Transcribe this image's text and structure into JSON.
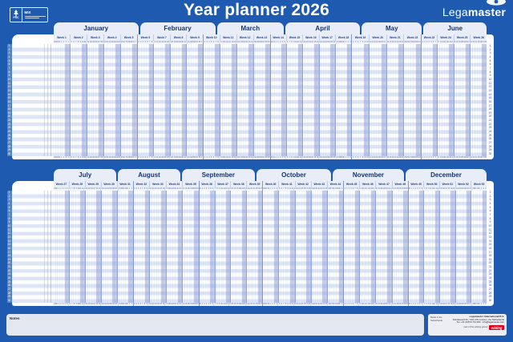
{
  "header": {
    "title": "Year planner 2026",
    "brand": {
      "prefix": "Lega",
      "suffix": "master"
    },
    "fsc": {
      "label": "FSC",
      "mix": "MIX"
    }
  },
  "planner": {
    "row_count": 30,
    "halves": [
      {
        "months": [
          {
            "name": "January",
            "weeks": [
              {
                "label": "Week 1",
                "days": [
                  29,
                  30,
                  31,
                  1,
                  2,
                  3,
                  4
                ]
              },
              {
                "label": "Week 2",
                "days": [
                  5,
                  6,
                  7,
                  8,
                  9,
                  10,
                  11
                ]
              },
              {
                "label": "Week 3",
                "days": [
                  12,
                  13,
                  14,
                  15,
                  16,
                  17,
                  18
                ]
              },
              {
                "label": "Week 4",
                "days": [
                  19,
                  20,
                  21,
                  22,
                  23,
                  24,
                  25
                ]
              },
              {
                "label": "Week 5",
                "days": [
                  26,
                  27,
                  28,
                  29,
                  30,
                  31,
                  1
                ]
              }
            ]
          },
          {
            "name": "February",
            "weeks": [
              {
                "label": "Week 6",
                "days": [
                  2,
                  3,
                  4,
                  5,
                  6,
                  7,
                  8
                ]
              },
              {
                "label": "Week 7",
                "days": [
                  9,
                  10,
                  11,
                  12,
                  13,
                  14,
                  15
                ]
              },
              {
                "label": "Week 8",
                "days": [
                  16,
                  17,
                  18,
                  19,
                  20,
                  21,
                  22
                ]
              },
              {
                "label": "Week 9",
                "days": [
                  23,
                  24,
                  25,
                  26,
                  27,
                  28,
                  1
                ]
              }
            ]
          },
          {
            "name": "March",
            "weeks": [
              {
                "label": "Week 10",
                "days": [
                  2,
                  3,
                  4,
                  5,
                  6,
                  7,
                  8
                ]
              },
              {
                "label": "Week 11",
                "days": [
                  9,
                  10,
                  11,
                  12,
                  13,
                  14,
                  15
                ]
              },
              {
                "label": "Week 12",
                "days": [
                  16,
                  17,
                  18,
                  19,
                  20,
                  21,
                  22
                ]
              },
              {
                "label": "Week 13",
                "days": [
                  23,
                  24,
                  25,
                  26,
                  27,
                  28,
                  29
                ]
              }
            ]
          },
          {
            "name": "April",
            "weeks": [
              {
                "label": "Week 14",
                "days": [
                  30,
                  31,
                  1,
                  2,
                  3,
                  4,
                  5
                ]
              },
              {
                "label": "Week 15",
                "days": [
                  6,
                  7,
                  8,
                  9,
                  10,
                  11,
                  12
                ]
              },
              {
                "label": "Week 16",
                "days": [
                  13,
                  14,
                  15,
                  16,
                  17,
                  18,
                  19
                ]
              },
              {
                "label": "Week 17",
                "days": [
                  20,
                  21,
                  22,
                  23,
                  24,
                  25,
                  26
                ]
              },
              {
                "label": "Week 18",
                "days": [
                  27,
                  28,
                  29,
                  30,
                  1,
                  2,
                  3
                ]
              }
            ]
          },
          {
            "name": "May",
            "weeks": [
              {
                "label": "Week 19",
                "days": [
                  4,
                  5,
                  6,
                  7,
                  8,
                  9,
                  10
                ]
              },
              {
                "label": "Week 20",
                "days": [
                  11,
                  12,
                  13,
                  14,
                  15,
                  16,
                  17
                ]
              },
              {
                "label": "Week 21",
                "days": [
                  18,
                  19,
                  20,
                  21,
                  22,
                  23,
                  24
                ]
              },
              {
                "label": "Week 22",
                "days": [
                  25,
                  26,
                  27,
                  28,
                  29,
                  30,
                  31
                ]
              }
            ]
          },
          {
            "name": "June",
            "weeks": [
              {
                "label": "Week 23",
                "days": [
                  1,
                  2,
                  3,
                  4,
                  5,
                  6,
                  7
                ]
              },
              {
                "label": "Week 24",
                "days": [
                  8,
                  9,
                  10,
                  11,
                  12,
                  13,
                  14
                ]
              },
              {
                "label": "Week 25",
                "days": [
                  15,
                  16,
                  17,
                  18,
                  19,
                  20,
                  21
                ]
              },
              {
                "label": "Week 26",
                "days": [
                  22,
                  23,
                  24,
                  25,
                  26,
                  27,
                  28
                ]
              }
            ]
          }
        ]
      },
      {
        "months": [
          {
            "name": "July",
            "weeks": [
              {
                "label": "Week 27",
                "days": [
                  29,
                  30,
                  1,
                  2,
                  3,
                  4,
                  5
                ]
              },
              {
                "label": "Week 28",
                "days": [
                  6,
                  7,
                  8,
                  9,
                  10,
                  11,
                  12
                ]
              },
              {
                "label": "Week 29",
                "days": [
                  13,
                  14,
                  15,
                  16,
                  17,
                  18,
                  19
                ]
              },
              {
                "label": "Week 30",
                "days": [
                  20,
                  21,
                  22,
                  23,
                  24,
                  25,
                  26
                ]
              },
              {
                "label": "Week 31",
                "days": [
                  27,
                  28,
                  29,
                  30,
                  31,
                  1,
                  2
                ]
              }
            ]
          },
          {
            "name": "August",
            "weeks": [
              {
                "label": "Week 32",
                "days": [
                  3,
                  4,
                  5,
                  6,
                  7,
                  8,
                  9
                ]
              },
              {
                "label": "Week 33",
                "days": [
                  10,
                  11,
                  12,
                  13,
                  14,
                  15,
                  16
                ]
              },
              {
                "label": "Week 34",
                "days": [
                  17,
                  18,
                  19,
                  20,
                  21,
                  22,
                  23
                ]
              },
              {
                "label": "Week 35",
                "days": [
                  24,
                  25,
                  26,
                  27,
                  28,
                  29,
                  30
                ]
              }
            ]
          },
          {
            "name": "September",
            "weeks": [
              {
                "label": "Week 36",
                "days": [
                  31,
                  1,
                  2,
                  3,
                  4,
                  5,
                  6
                ]
              },
              {
                "label": "Week 37",
                "days": [
                  7,
                  8,
                  9,
                  10,
                  11,
                  12,
                  13
                ]
              },
              {
                "label": "Week 38",
                "days": [
                  14,
                  15,
                  16,
                  17,
                  18,
                  19,
                  20
                ]
              },
              {
                "label": "Week 39",
                "days": [
                  21,
                  22,
                  23,
                  24,
                  25,
                  26,
                  27
                ]
              }
            ]
          },
          {
            "name": "October",
            "weeks": [
              {
                "label": "Week 40",
                "days": [
                  28,
                  29,
                  30,
                  1,
                  2,
                  3,
                  4
                ]
              },
              {
                "label": "Week 41",
                "days": [
                  5,
                  6,
                  7,
                  8,
                  9,
                  10,
                  11
                ]
              },
              {
                "label": "Week 42",
                "days": [
                  12,
                  13,
                  14,
                  15,
                  16,
                  17,
                  18
                ]
              },
              {
                "label": "Week 43",
                "days": [
                  19,
                  20,
                  21,
                  22,
                  23,
                  24,
                  25
                ]
              },
              {
                "label": "Week 44",
                "days": [
                  26,
                  27,
                  28,
                  29,
                  30,
                  31,
                  1
                ]
              }
            ]
          },
          {
            "name": "November",
            "weeks": [
              {
                "label": "Week 45",
                "days": [
                  2,
                  3,
                  4,
                  5,
                  6,
                  7,
                  8
                ]
              },
              {
                "label": "Week 46",
                "days": [
                  9,
                  10,
                  11,
                  12,
                  13,
                  14,
                  15
                ]
              },
              {
                "label": "Week 47",
                "days": [
                  16,
                  17,
                  18,
                  19,
                  20,
                  21,
                  22
                ]
              },
              {
                "label": "Week 48",
                "days": [
                  23,
                  24,
                  25,
                  26,
                  27,
                  28,
                  29
                ]
              }
            ]
          },
          {
            "name": "December",
            "weeks": [
              {
                "label": "Week 49",
                "days": [
                  30,
                  1,
                  2,
                  3,
                  4,
                  5,
                  6
                ]
              },
              {
                "label": "Week 50",
                "days": [
                  7,
                  8,
                  9,
                  10,
                  11,
                  12,
                  13
                ]
              },
              {
                "label": "Week 51",
                "days": [
                  14,
                  15,
                  16,
                  17,
                  18,
                  19,
                  20
                ]
              },
              {
                "label": "Week 52",
                "days": [
                  21,
                  22,
                  23,
                  24,
                  25,
                  26,
                  27
                ]
              },
              {
                "label": "Week 53",
                "days": [
                  28,
                  29,
                  30,
                  31,
                  1,
                  2,
                  3
                ]
              }
            ]
          }
        ]
      }
    ]
  },
  "footer": {
    "notes_label": "Notes",
    "made_in": "Made in the Netherlands",
    "company_name": "Legamaster International B.V.",
    "company_address": "Kwinkweerd 62, 7241 CW Lochem, the Netherlands",
    "company_contact": "Tel. +31 (0)573 713 000 - info@legamaster.com",
    "edding_tagline": "part of the edding group",
    "edding_logo": "edding"
  },
  "colors": {
    "background_blue": "#1e5bb0",
    "panel_light": "#e9edf8",
    "navy_text": "#16356f",
    "weekend_shade": "#8e9ed5",
    "edding_red": "#e2001a"
  }
}
